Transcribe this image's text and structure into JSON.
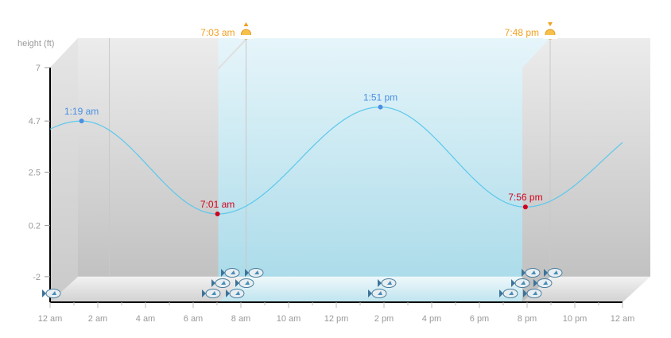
{
  "chart_data": {
    "type": "line",
    "title": "",
    "ylabel": "height (ft)",
    "xlabel": "",
    "ylim": [
      -3.1,
      7
    ],
    "xlim_hours": [
      0,
      24
    ],
    "y_ticks": [
      {
        "value": 7,
        "label": "7"
      },
      {
        "value": 4.7,
        "label": "4.7"
      },
      {
        "value": 2.5,
        "label": "2.5"
      },
      {
        "value": 0.2,
        "label": "0.2"
      },
      {
        "value": -2,
        "label": "-2"
      }
    ],
    "x_ticks": [
      {
        "hour": 0,
        "label": "12 am"
      },
      {
        "hour": 2,
        "label": "2 am"
      },
      {
        "hour": 4,
        "label": "4 am"
      },
      {
        "hour": 6,
        "label": "6 am"
      },
      {
        "hour": 8,
        "label": "8 am"
      },
      {
        "hour": 10,
        "label": "10 am"
      },
      {
        "hour": 12,
        "label": "12 pm"
      },
      {
        "hour": 14,
        "label": "2 pm"
      },
      {
        "hour": 16,
        "label": "4 pm"
      },
      {
        "hour": 18,
        "label": "6 pm"
      },
      {
        "hour": 20,
        "label": "8 pm"
      },
      {
        "hour": 22,
        "label": "10 pm"
      },
      {
        "hour": 24,
        "label": "12 am"
      }
    ],
    "tides": [
      {
        "hour": -5.5,
        "height": 0.8,
        "type": "low",
        "label": ""
      },
      {
        "hour": 1.32,
        "height": 4.7,
        "type": "high",
        "label": "1:19 am"
      },
      {
        "hour": 7.02,
        "height": 0.7,
        "type": "low",
        "label": "7:01 am"
      },
      {
        "hour": 13.85,
        "height": 5.3,
        "type": "high",
        "label": "1:51 pm"
      },
      {
        "hour": 19.93,
        "height": 1.0,
        "type": "low",
        "label": "7:56 pm"
      },
      {
        "hour": 26.3,
        "height": 4.9,
        "type": "high",
        "label": ""
      }
    ],
    "sunrise": {
      "hour": 7.05,
      "label": "7:03 am"
    },
    "sunset": {
      "hour": 19.8,
      "label": "7:48 pm"
    },
    "colors": {
      "line": "#5bc8ec",
      "high": "#4a90e2",
      "low": "#d0021b",
      "sun": "#f0a020"
    }
  }
}
